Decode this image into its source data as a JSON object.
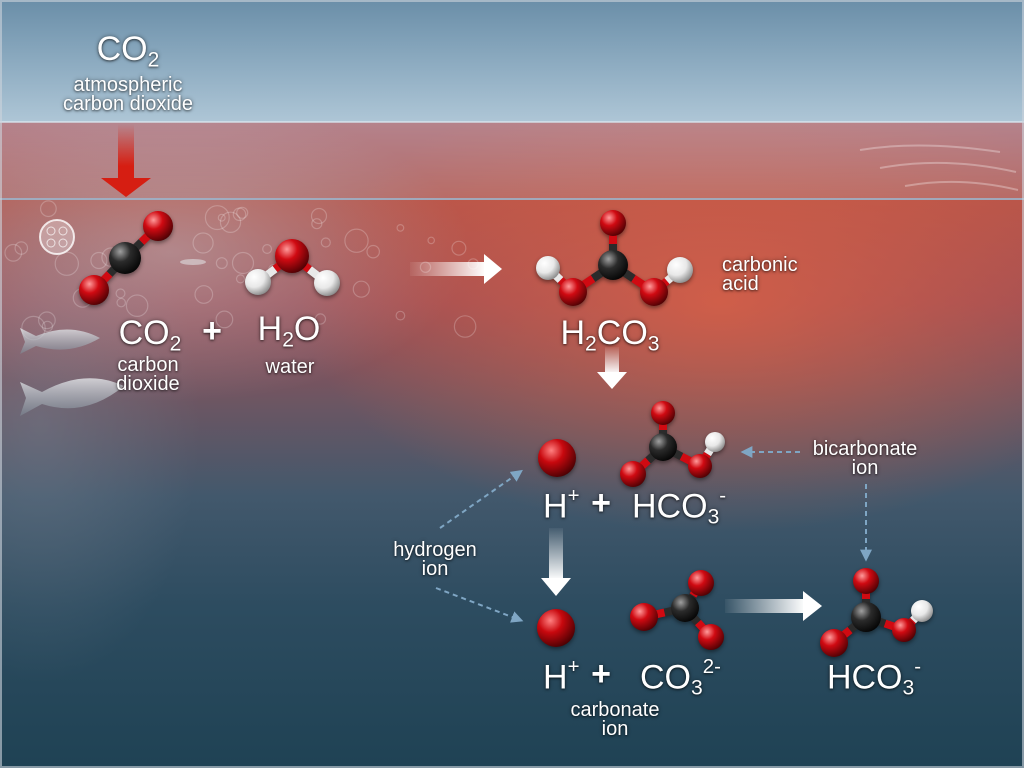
{
  "colors": {
    "oxygen": "#d00a12",
    "carbon": "#2b2b2b",
    "hydrogen": "#e8e8e8",
    "hydrogen_ion": "#c8080e",
    "atmospheric_arrow": "#d61e12",
    "reaction_arrow": "#ffffff",
    "pointer_arrow": "#7fa6c4",
    "text": "#ffffff"
  },
  "atmosphere": {
    "co2": {
      "base": "CO",
      "sub": "2"
    },
    "label": {
      "line1": "atmospheric",
      "line2": "carbon dioxide"
    }
  },
  "dissolution": {
    "co2": {
      "base": "CO",
      "sub": "2"
    },
    "co2_label": {
      "line1": "carbon",
      "line2": "dioxide"
    },
    "plus": "+",
    "h2o": {
      "part1": "H",
      "sub": "2",
      "part2": "O"
    },
    "h2o_label": "water"
  },
  "carbonic_acid": {
    "formula": {
      "part1": "H",
      "sub1": "2",
      "part2": "CO",
      "sub2": "3"
    },
    "label": {
      "line1": "carbonic",
      "line2": "acid"
    }
  },
  "dissociation": {
    "hydrogen_ion": {
      "base": "H",
      "sup": "+"
    },
    "plus": "+",
    "bicarbonate": {
      "base": "HCO",
      "sub": "3",
      "sup": "-"
    },
    "bicarbonate_label": {
      "line1": "bicarbonate",
      "line2": "ion"
    }
  },
  "hydrogen_ion_label": {
    "line1": "hydrogen",
    "line2": "ion"
  },
  "carbonate_reaction": {
    "hydrogen_ion": {
      "base": "H",
      "sup": "+"
    },
    "plus": "+",
    "carbonate": {
      "base": "CO",
      "sub": "3",
      "sup": "2-"
    },
    "carbonate_label": {
      "line1": "carbonate",
      "line2": "ion"
    },
    "product": {
      "base": "HCO",
      "sub": "3",
      "sup": "-"
    }
  }
}
